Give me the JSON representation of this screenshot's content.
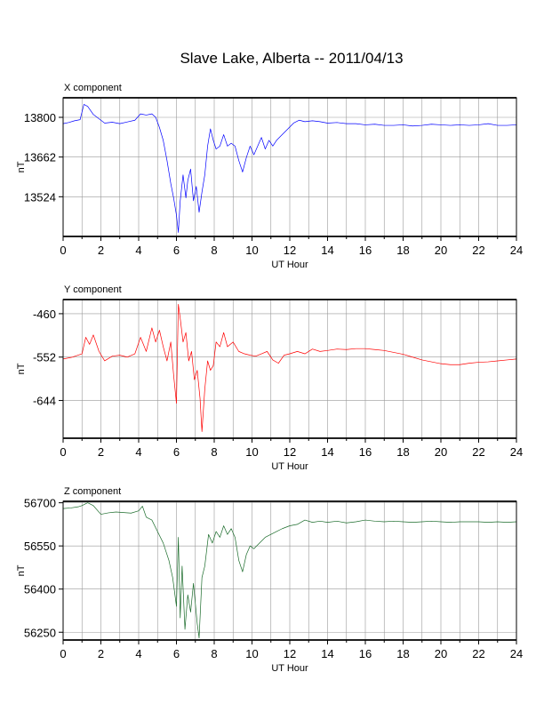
{
  "title": "Slave Lake, Alberta -- 2011/04/13",
  "chart_data": [
    {
      "type": "line",
      "title": "X component",
      "xlabel": "UT Hour",
      "ylabel": "nT",
      "xlim": [
        0,
        24
      ],
      "ylim": [
        13386,
        13868
      ],
      "xticks": [
        0,
        2,
        4,
        6,
        8,
        10,
        12,
        14,
        16,
        18,
        20,
        22,
        24
      ],
      "yticks": [
        13524,
        13662,
        13800
      ],
      "grid": true,
      "color": "#0000ff",
      "series": [
        {
          "x": [
            0,
            0.3,
            0.6,
            0.9,
            1.1,
            1.3,
            1.6,
            1.9,
            2.2,
            2.6,
            3.0,
            3.4,
            3.8,
            4.1,
            4.4,
            4.7,
            4.9,
            5.1,
            5.3,
            5.5,
            5.7,
            5.85,
            6.0,
            6.1,
            6.2,
            6.35,
            6.5,
            6.6,
            6.75,
            6.9,
            7.05,
            7.2,
            7.35,
            7.5,
            7.65,
            7.8,
            7.95,
            8.1,
            8.3,
            8.5,
            8.7,
            8.9,
            9.1,
            9.3,
            9.5,
            9.7,
            9.9,
            10.1,
            10.3,
            10.5,
            10.7,
            10.9,
            11.1,
            11.3,
            11.6,
            11.9,
            12.2,
            12.5,
            12.8,
            13.2,
            13.6,
            14.0,
            14.5,
            15.0,
            15.5,
            16.0,
            16.5,
            17.0,
            17.5,
            18.0,
            18.5,
            19.0,
            19.5,
            20.0,
            20.5,
            21.0,
            21.5,
            22.0,
            22.5,
            23.0,
            23.5,
            24.0
          ],
          "y": [
            13778,
            13782,
            13788,
            13792,
            13845,
            13838,
            13810,
            13795,
            13780,
            13783,
            13778,
            13784,
            13790,
            13812,
            13808,
            13812,
            13800,
            13765,
            13720,
            13650,
            13570,
            13520,
            13460,
            13400,
            13510,
            13600,
            13520,
            13580,
            13620,
            13510,
            13560,
            13470,
            13540,
            13600,
            13700,
            13760,
            13720,
            13690,
            13700,
            13740,
            13700,
            13710,
            13700,
            13650,
            13610,
            13660,
            13700,
            13670,
            13700,
            13730,
            13690,
            13720,
            13700,
            13720,
            13740,
            13760,
            13780,
            13790,
            13785,
            13788,
            13785,
            13780,
            13782,
            13778,
            13778,
            13774,
            13776,
            13772,
            13772,
            13774,
            13770,
            13772,
            13776,
            13774,
            13772,
            13774,
            13772,
            13774,
            13778,
            13772,
            13772,
            13774
          ]
        }
      ]
    },
    {
      "type": "line",
      "title": "Y component",
      "xlabel": "UT Hour",
      "ylabel": "nT",
      "xlim": [
        0,
        24
      ],
      "ylim": [
        -724,
        -430
      ],
      "xticks": [
        0,
        2,
        4,
        6,
        8,
        10,
        12,
        14,
        16,
        18,
        20,
        22,
        24
      ],
      "yticks": [
        -644,
        -552,
        -460
      ],
      "grid": true,
      "color": "#ff0000",
      "series": [
        {
          "x": [
            0,
            0.5,
            1.0,
            1.2,
            1.4,
            1.6,
            1.9,
            2.2,
            2.6,
            3.0,
            3.4,
            3.8,
            4.1,
            4.4,
            4.7,
            4.9,
            5.1,
            5.3,
            5.5,
            5.7,
            5.85,
            6.0,
            6.1,
            6.2,
            6.35,
            6.5,
            6.65,
            6.8,
            6.95,
            7.1,
            7.25,
            7.35,
            7.5,
            7.65,
            7.8,
            7.95,
            8.1,
            8.3,
            8.5,
            8.7,
            9.0,
            9.3,
            9.6,
            9.9,
            10.2,
            10.5,
            10.8,
            11.1,
            11.4,
            11.7,
            12.0,
            12.4,
            12.8,
            13.2,
            13.6,
            14.0,
            14.5,
            15.0,
            15.5,
            16.0,
            16.5,
            17.0,
            17.5,
            18.0,
            18.5,
            19.0,
            19.5,
            20.0,
            20.5,
            21.0,
            21.5,
            22.0,
            22.5,
            23.0,
            23.5,
            24.0
          ],
          "y": [
            -556,
            -552,
            -545,
            -510,
            -525,
            -505,
            -540,
            -560,
            -550,
            -548,
            -552,
            -545,
            -510,
            -540,
            -490,
            -520,
            -495,
            -530,
            -560,
            -520,
            -590,
            -650,
            -440,
            -470,
            -520,
            -500,
            -560,
            -540,
            -600,
            -580,
            -640,
            -710,
            -620,
            -560,
            -580,
            -570,
            -520,
            -530,
            -500,
            -530,
            -520,
            -540,
            -545,
            -548,
            -550,
            -545,
            -540,
            -558,
            -565,
            -548,
            -545,
            -540,
            -545,
            -535,
            -540,
            -538,
            -535,
            -536,
            -534,
            -534,
            -536,
            -538,
            -542,
            -546,
            -552,
            -558,
            -562,
            -566,
            -568,
            -568,
            -565,
            -563,
            -562,
            -560,
            -558,
            -556
          ]
        }
      ]
    },
    {
      "type": "line",
      "title": "Z component",
      "xlabel": "UT Hour",
      "ylabel": "nT",
      "xlim": [
        0,
        24
      ],
      "ylim": [
        56223,
        56705
      ],
      "xticks": [
        0,
        2,
        4,
        6,
        8,
        10,
        12,
        14,
        16,
        18,
        20,
        22,
        24
      ],
      "yticks": [
        56250,
        56400,
        56550,
        56700
      ],
      "grid": true,
      "color": "#1a6b2a",
      "series": [
        {
          "x": [
            0,
            0.4,
            0.8,
            1.0,
            1.3,
            1.6,
            2.0,
            2.4,
            2.8,
            3.2,
            3.6,
            4.0,
            4.2,
            4.4,
            4.7,
            5.0,
            5.3,
            5.6,
            5.8,
            6.0,
            6.1,
            6.2,
            6.3,
            6.45,
            6.6,
            6.75,
            6.9,
            7.0,
            7.1,
            7.2,
            7.35,
            7.5,
            7.7,
            7.9,
            8.1,
            8.3,
            8.5,
            8.7,
            8.9,
            9.1,
            9.3,
            9.5,
            9.7,
            9.9,
            10.1,
            10.4,
            10.7,
            11.0,
            11.3,
            11.6,
            12.0,
            12.4,
            12.8,
            13.2,
            13.6,
            14.0,
            14.5,
            15.0,
            15.5,
            16.0,
            16.5,
            17.0,
            17.5,
            18.0,
            18.5,
            19.0,
            19.5,
            20.0,
            20.5,
            21.0,
            21.5,
            22.0,
            22.5,
            23.0,
            23.5,
            24.0
          ],
          "y": [
            56680,
            56682,
            56686,
            56690,
            56700,
            56690,
            56660,
            56665,
            56668,
            56666,
            56664,
            56672,
            56688,
            56650,
            56640,
            56600,
            56560,
            56500,
            56440,
            56340,
            56580,
            56300,
            56480,
            56260,
            56380,
            56320,
            56420,
            56350,
            56280,
            56230,
            56440,
            56480,
            56590,
            56560,
            56600,
            56580,
            56620,
            56590,
            56610,
            56580,
            56500,
            56460,
            56520,
            56550,
            56540,
            56560,
            56580,
            56590,
            56600,
            56610,
            56620,
            56625,
            56640,
            56632,
            56636,
            56632,
            56636,
            56630,
            56634,
            56640,
            56636,
            56634,
            56636,
            56634,
            56632,
            56634,
            56636,
            56634,
            56632,
            56634,
            56634,
            56634,
            56632,
            56634,
            56632,
            56634
          ]
        }
      ]
    }
  ]
}
